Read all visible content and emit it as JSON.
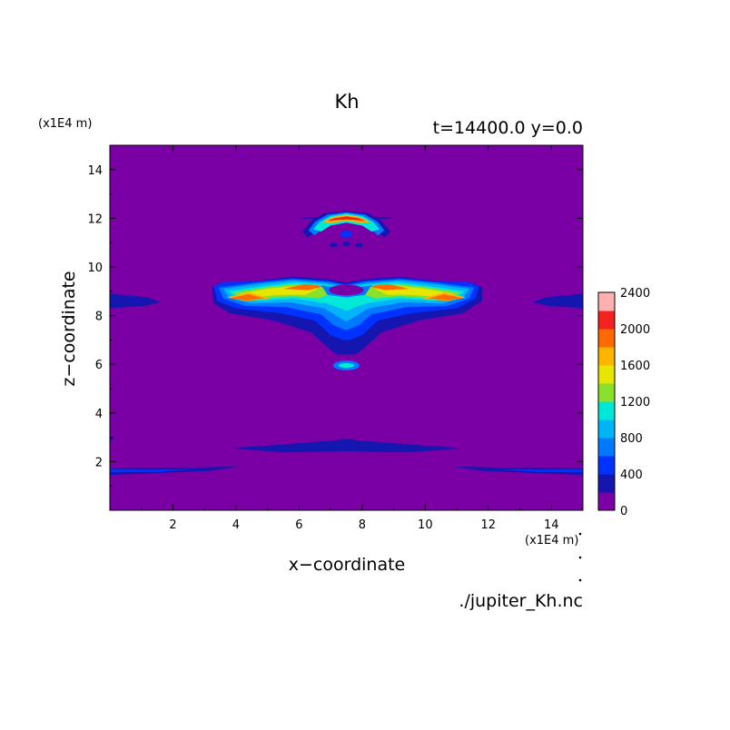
{
  "chart_data": {
    "type": "contour",
    "title": "Kh",
    "subtitle": "t=14400.0 y=0.0",
    "xlabel": "x−coordinate",
    "ylabel": "z−coordinate",
    "x_unit": "(x1E4 m)",
    "z_unit": "(x1E4 m)",
    "source": "./jupiter_Kh.nc",
    "xlim": [
      0,
      15
    ],
    "ylim": [
      0,
      15
    ],
    "x_ticks": [
      "2",
      "4",
      "6",
      "8",
      "10",
      "12",
      "14"
    ],
    "y_ticks": [
      "2",
      "4",
      "6",
      "8",
      "10",
      "12",
      "14"
    ],
    "colorbar": {
      "levels": [
        0,
        200,
        400,
        600,
        800,
        1000,
        1200,
        1400,
        1600,
        1800,
        2000,
        2200,
        2400
      ],
      "labels": [
        "0",
        "400",
        "800",
        "1200",
        "1600",
        "2000",
        "2400"
      ],
      "colors": [
        "#7a00a6",
        "#1515b0",
        "#0032ff",
        "#0078ff",
        "#00b4f8",
        "#00e8d8",
        "#8ae02a",
        "#e6e600",
        "#ffb400",
        "#ff6a00",
        "#f52020",
        "#ffb0b0"
      ]
    },
    "features": [
      {
        "name": "upper-arc",
        "x": 7.5,
        "z": 11.8,
        "peak": 2100
      },
      {
        "name": "main-band",
        "x": [
          3.2,
          11.8
        ],
        "z": 8.6,
        "peak": 2000
      },
      {
        "name": "lower-blob",
        "x": 7.5,
        "z": 6.0,
        "peak": 900
      },
      {
        "name": "low-band",
        "x": [
          3.8,
          11.2
        ],
        "z": 2.5,
        "peak": 300
      },
      {
        "name": "bottom-band",
        "x": [
          0,
          15
        ],
        "z": 1.6,
        "peak": 300
      }
    ]
  }
}
